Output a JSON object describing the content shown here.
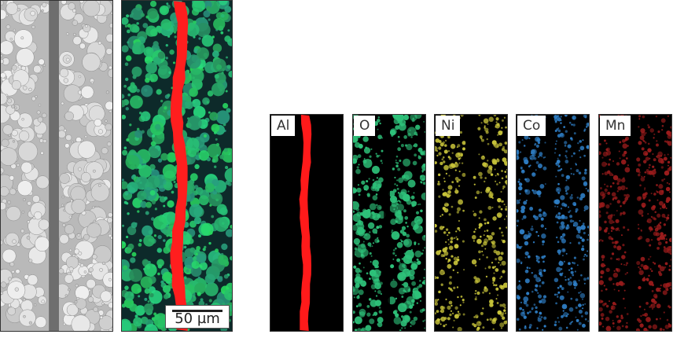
{
  "figure": {
    "scale_bar": "50 µm",
    "maps": [
      {
        "id": "map-al",
        "label": "Al",
        "color": "#ff1a1a",
        "style": "layer"
      },
      {
        "id": "map-o",
        "label": "O",
        "color": "#2ec27a",
        "style": "particles"
      },
      {
        "id": "map-ni",
        "label": "Ni",
        "color": "#c8c43a",
        "style": "particles"
      },
      {
        "id": "map-co",
        "label": "Co",
        "color": "#2f80c8",
        "style": "particles"
      },
      {
        "id": "map-mn",
        "label": "Mn",
        "color": "#9c1c1c",
        "style": "particles"
      }
    ],
    "colors": {
      "sem_background": "#b9b9b9",
      "sem_particle": "#d4d4d4",
      "sem_separator": "#6e6e6e",
      "overlay_background": "#0d2a2a",
      "overlay_particle": "#2fb07a",
      "overlay_layer": "#ff1e1e",
      "map_background": "#000000"
    }
  }
}
